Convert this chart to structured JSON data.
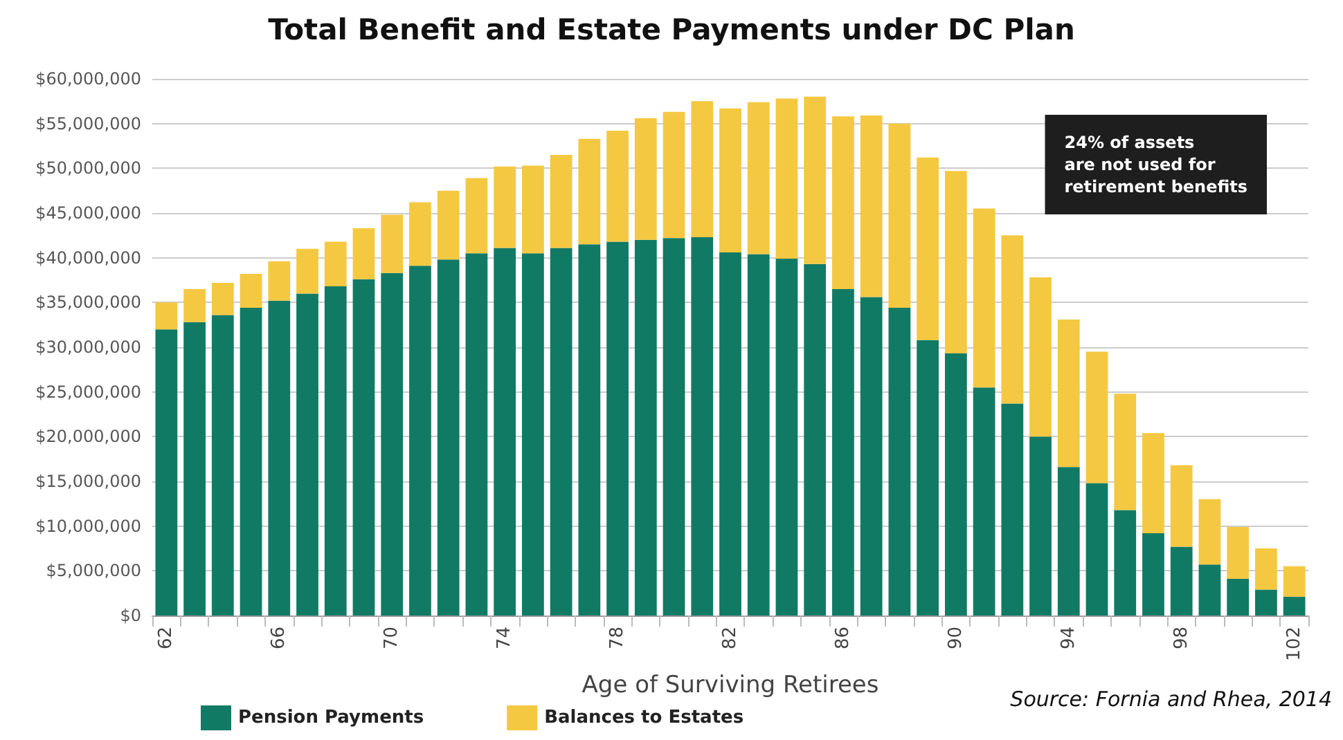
{
  "chart_data": {
    "type": "bar",
    "stacked": true,
    "title": "Total Benefit and Estate Payments under DC Plan",
    "xlabel": "Age of Surviving Retirees",
    "categories": [
      "62",
      null,
      null,
      null,
      "66",
      null,
      null,
      null,
      "70",
      null,
      null,
      null,
      "74",
      null,
      null,
      null,
      "78",
      null,
      null,
      null,
      "82",
      null,
      null,
      null,
      "86",
      null,
      null,
      null,
      "90",
      null,
      null,
      null,
      "94",
      null,
      null,
      null,
      "98",
      null,
      null,
      null,
      "102"
    ],
    "series": [
      {
        "name": "Pension Payments",
        "color": "#117a65",
        "values": [
          32000000,
          32800000,
          33600000,
          34400000,
          35200000,
          36000000,
          36800000,
          37600000,
          38300000,
          39100000,
          39800000,
          40500000,
          41100000,
          40500000,
          41100000,
          41500000,
          41800000,
          42000000,
          42200000,
          42300000,
          40600000,
          40400000,
          39900000,
          39300000,
          36500000,
          35600000,
          34400000,
          30800000,
          29300000,
          25500000,
          23700000,
          20000000,
          16600000,
          14800000,
          11800000,
          9200000,
          7700000,
          5700000,
          4100000,
          2900000,
          2100000
        ]
      },
      {
        "name": "Balances to Estates",
        "color": "#f5c842",
        "values": [
          3000000,
          3700000,
          3600000,
          3800000,
          4400000,
          5000000,
          5000000,
          5700000,
          6500000,
          7100000,
          7700000,
          8400000,
          9100000,
          9800000,
          10400000,
          11800000,
          12400000,
          13600000,
          14100000,
          15200000,
          16100000,
          17000000,
          17900000,
          18700000,
          19300000,
          20300000,
          20600000,
          20400000,
          20400000,
          20000000,
          18800000,
          17800000,
          16500000,
          14700000,
          13000000,
          11200000,
          9100000,
          7300000,
          5800000,
          4600000,
          3400000
        ]
      }
    ],
    "ylim": [
      0,
      60000000
    ],
    "yticks": [
      {
        "value": 0,
        "label": "$0"
      },
      {
        "value": 5000000,
        "label": "$5,000,000"
      },
      {
        "value": 10000000,
        "label": "$10,000,000"
      },
      {
        "value": 15000000,
        "label": "$15,000,000"
      },
      {
        "value": 20000000,
        "label": "$20,000,000"
      },
      {
        "value": 25000000,
        "label": "$25,000,000"
      },
      {
        "value": 30000000,
        "label": "$30,000,000"
      },
      {
        "value": 35000000,
        "label": "$35,000,000"
      },
      {
        "value": 40000000,
        "label": "$40,000,000"
      },
      {
        "value": 45000000,
        "label": "$45,000,000"
      },
      {
        "value": 50000000,
        "label": "$50,000,000"
      },
      {
        "value": 55000000,
        "label": "$55,000,000"
      },
      {
        "value": 60000000,
        "label": "$60,000,000"
      }
    ],
    "grid": "y",
    "legend": "bottom left",
    "annotations": [
      "24% of assets\nare not used for\nretirement benefits",
      "Source: Fornia and Rhea, 2014"
    ]
  }
}
